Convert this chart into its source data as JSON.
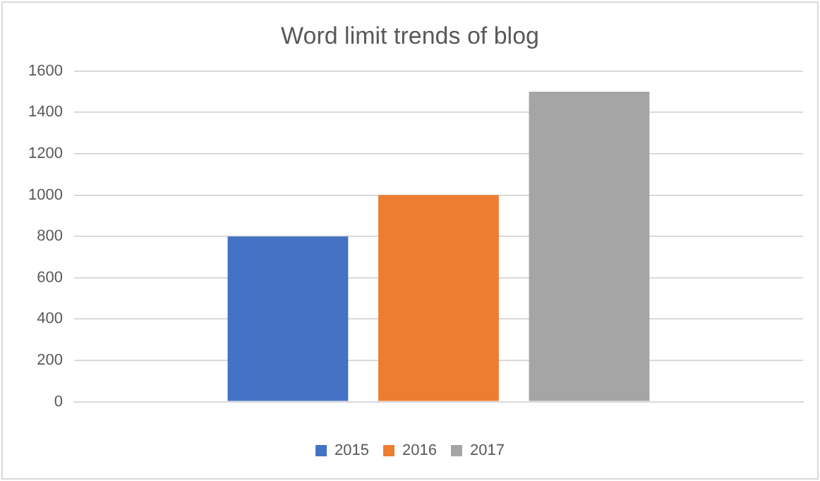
{
  "chart_data": {
    "type": "bar",
    "title": "Word limit trends of blog",
    "categories": [
      null
    ],
    "series": [
      {
        "name": "2015",
        "color": "#4472c4",
        "values": [
          800
        ]
      },
      {
        "name": "2016",
        "color": "#ed7d31",
        "values": [
          1000
        ]
      },
      {
        "name": "2017",
        "color": "#a5a5a5",
        "values": [
          1500
        ]
      }
    ],
    "ylim": [
      0,
      1600
    ],
    "yticks": [
      0,
      200,
      400,
      600,
      800,
      1000,
      1200,
      1400,
      1600
    ],
    "grid": "y",
    "legend": "bottom"
  }
}
